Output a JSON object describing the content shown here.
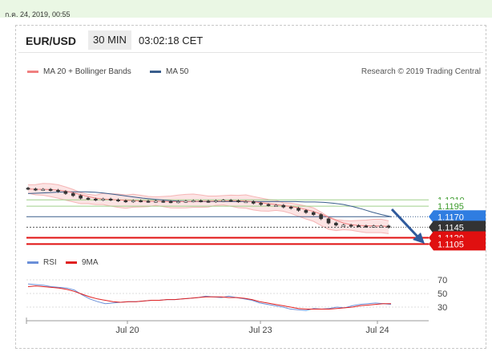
{
  "date_stamp": "ก.ค. 24, 2019, 00:55",
  "header": {
    "symbol": "EUR/USD",
    "timeframe": "30 MIN",
    "time": "03:02:18 CET"
  },
  "legend": {
    "ma20": "MA 20 + Bollinger Bands",
    "ma20_color": "#f08080",
    "ma50": "MA 50",
    "ma50_color": "#3a5e8c"
  },
  "credit": "Research © 2019 Trading Central",
  "rsi_legend": {
    "rsi": "RSI",
    "rsi_color": "#6a8fd8",
    "ma9": "9MA",
    "ma9_color": "#e02020"
  },
  "chart_data": {
    "type": "candlestick",
    "x_ticks": [
      "Jul 20",
      "Jul 23",
      "Jul 24"
    ],
    "price_levels": [
      {
        "label": "1.1210",
        "value": 1.121,
        "style": "support-green"
      },
      {
        "label": "1.1195",
        "value": 1.1195,
        "style": "support-green"
      },
      {
        "label": "1.1170",
        "value": 1.117,
        "style": "blue-tag"
      },
      {
        "label": "1.1145",
        "value": 1.1145,
        "style": "current-price"
      },
      {
        "label": "1.1120",
        "value": 1.112,
        "style": "target-red"
      },
      {
        "label": "1.1105",
        "value": 1.1105,
        "style": "target-red"
      }
    ],
    "price_series": [
      1.1236,
      1.1234,
      1.1235,
      1.1233,
      1.123,
      1.1225,
      1.122,
      1.1214,
      1.1212,
      1.121,
      1.1212,
      1.121,
      1.1208,
      1.1206,
      1.1208,
      1.1207,
      1.1206,
      1.1207,
      1.1206,
      1.1205,
      1.1206,
      1.1207,
      1.1208,
      1.1207,
      1.1206,
      1.1208,
      1.1209,
      1.1208,
      1.1206,
      1.1206,
      1.1202,
      1.1199,
      1.1197,
      1.1197,
      1.1193,
      1.119,
      1.1185,
      1.118,
      1.1175,
      1.1165,
      1.1155,
      1.115,
      1.115,
      1.1149,
      1.1148,
      1.1147,
      1.1148,
      1.1148,
      1.1145
    ],
    "ma50_series": [
      1.1225,
      1.1226,
      1.1227,
      1.1228,
      1.1229,
      1.1229,
      1.1229,
      1.1228,
      1.1226,
      1.1223,
      1.122,
      1.1217,
      1.1214,
      1.1212,
      1.121,
      1.1208,
      1.1207,
      1.1206,
      1.1206,
      1.1206,
      1.1206,
      1.1206,
      1.1206,
      1.1206,
      1.1206,
      1.1206,
      1.1206,
      1.1206,
      1.1206,
      1.1205,
      1.1205,
      1.1204,
      1.1202,
      1.1199,
      1.1194,
      1.1188,
      1.1181,
      1.1175,
      1.117
    ],
    "rsi": {
      "ticks": [
        "70",
        "50",
        "30"
      ],
      "range": [
        10,
        80
      ],
      "values": [
        64,
        63,
        62,
        60,
        59,
        58,
        55,
        48,
        42,
        38,
        35,
        36,
        37,
        38,
        38,
        39,
        40,
        40,
        41,
        41,
        42,
        43,
        44,
        46,
        45,
        44,
        46,
        44,
        42,
        40,
        36,
        34,
        32,
        30,
        27,
        26,
        25,
        28,
        27,
        28,
        30,
        29,
        32,
        34,
        35,
        36,
        35,
        34
      ],
      "ma9": [
        60,
        61,
        60,
        59,
        58,
        56,
        53,
        49,
        45,
        42,
        40,
        38,
        37,
        38,
        38,
        39,
        40,
        40,
        41,
        41,
        42,
        43,
        44,
        45,
        45,
        45,
        44,
        44,
        43,
        41,
        38,
        36,
        34,
        32,
        30,
        28,
        27,
        27,
        27,
        27,
        28,
        29,
        30,
        32,
        33,
        34,
        35,
        35
      ]
    }
  }
}
